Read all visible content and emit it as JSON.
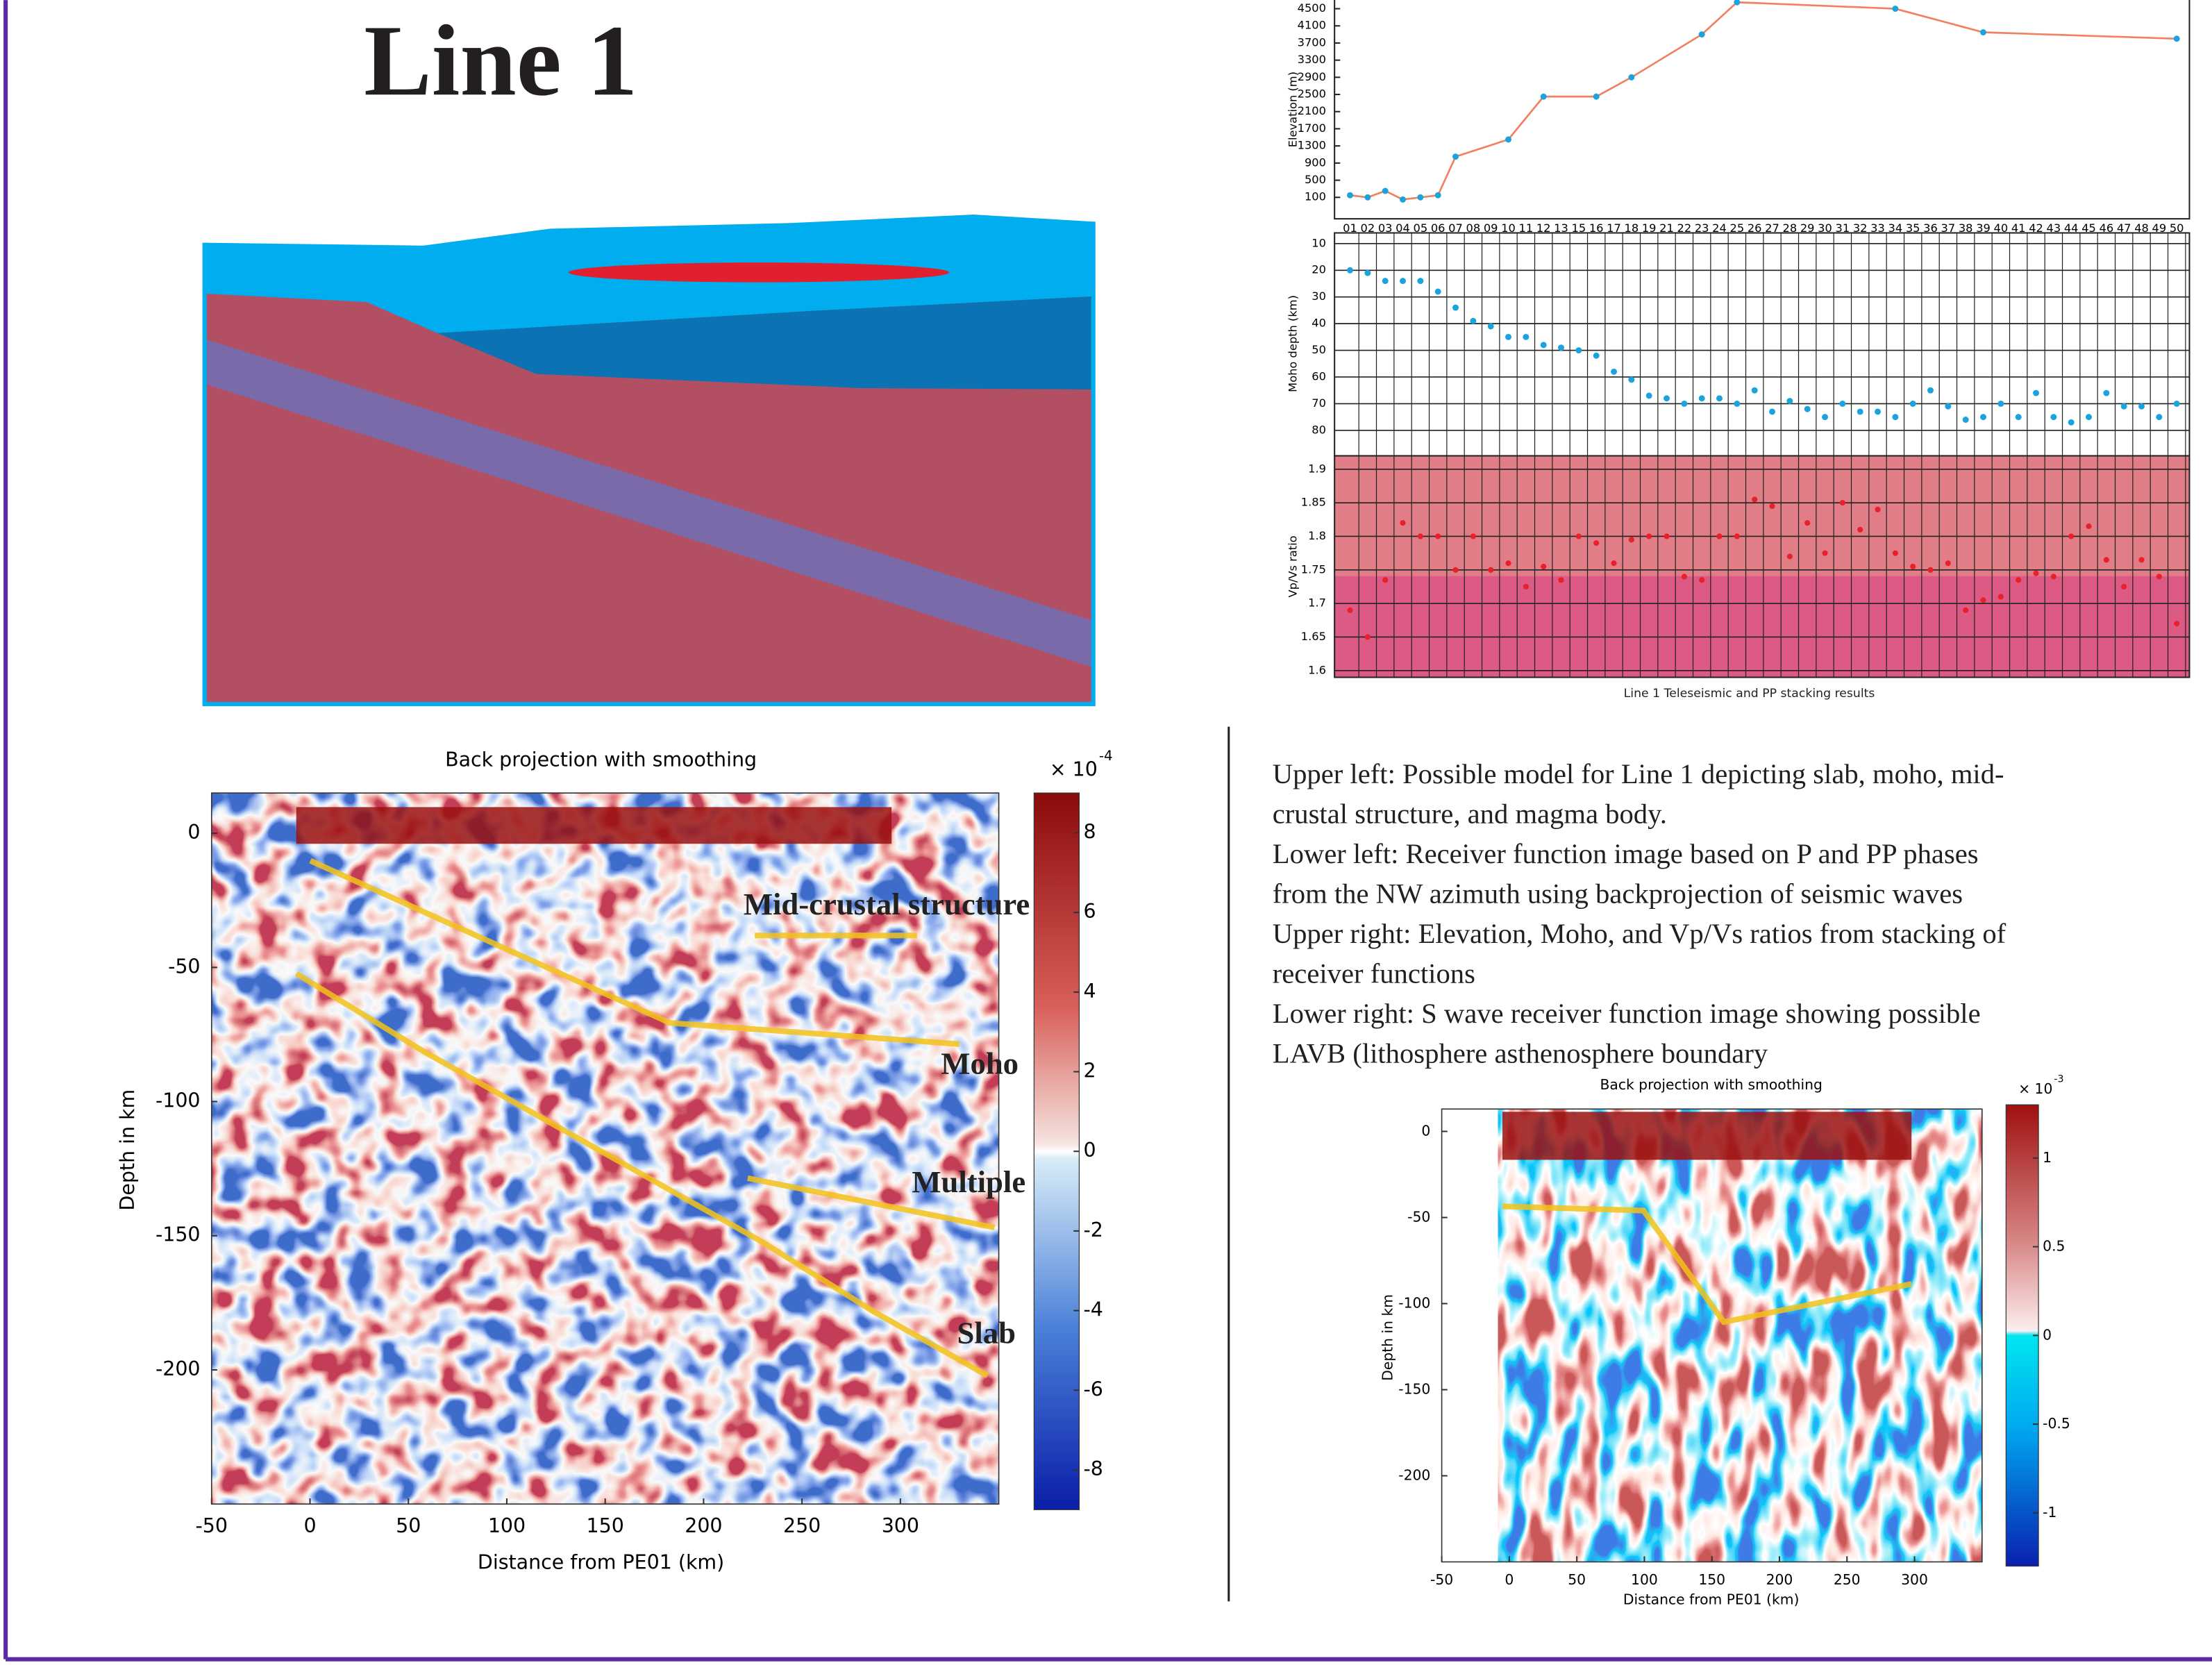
{
  "title": "Line 1",
  "stacking": {
    "caption": "Line 1 Teleseismic and PP stacking results",
    "stations": [
      "01",
      "02",
      "03",
      "04",
      "05",
      "06",
      "07",
      "08",
      "09",
      "10",
      "11",
      "12",
      "13",
      "15",
      "16",
      "17",
      "18",
      "19",
      "21",
      "22",
      "23",
      "24",
      "25",
      "26",
      "27",
      "28",
      "29",
      "30",
      "31",
      "32",
      "33",
      "34",
      "35",
      "36",
      "37",
      "38",
      "39",
      "40",
      "41",
      "42",
      "43",
      "44",
      "45",
      "46",
      "47",
      "48",
      "49",
      "50"
    ],
    "elevation": {
      "ylabel": "Elevation (m)",
      "ylim": [
        -400,
        4700
      ],
      "yticks": [
        100,
        500,
        900,
        1300,
        1700,
        2100,
        2500,
        2900,
        3300,
        3700,
        4100,
        4500
      ],
      "color": "#f08060",
      "stations": [
        "01",
        "02",
        "03",
        "04",
        "05",
        "06",
        "07",
        "10",
        "12",
        "16",
        "18",
        "23",
        "25",
        "34",
        "39",
        "50"
      ],
      "values": [
        150,
        100,
        250,
        50,
        100,
        150,
        1050,
        1450,
        2450,
        2450,
        2900,
        3900,
        4650,
        4500,
        3950,
        3800
      ]
    },
    "moho": {
      "ylabel": "Moho depth (km)",
      "ylim": [
        6,
        89
      ],
      "inverted": true,
      "yticks": [
        10,
        20,
        30,
        40,
        50,
        60,
        70,
        80
      ],
      "color": "#1aa3dc",
      "values": [
        20,
        21,
        24,
        24,
        24,
        28,
        34,
        39,
        41,
        45,
        45,
        48,
        49,
        50,
        52,
        58,
        61,
        67,
        68,
        70,
        68,
        68,
        70,
        65,
        73,
        69,
        72,
        75,
        70,
        73,
        73,
        75,
        70,
        65,
        71,
        76,
        75,
        70,
        75,
        66,
        75,
        77,
        75,
        66,
        71,
        71,
        75,
        70
      ]
    },
    "vpvs": {
      "ylabel": "Vp/Vs ratio",
      "ylim": [
        1.59,
        1.92
      ],
      "yticks": [
        1.6,
        1.65,
        1.7,
        1.75,
        1.8,
        1.85,
        1.9
      ],
      "color": "#e8202a",
      "values": [
        1.69,
        1.65,
        1.735,
        1.82,
        1.8,
        1.8,
        1.75,
        1.8,
        1.75,
        1.76,
        1.725,
        1.755,
        1.735,
        1.8,
        1.79,
        1.76,
        1.795,
        1.8,
        1.8,
        1.74,
        1.735,
        1.8,
        1.8,
        1.855,
        1.845,
        1.77,
        1.82,
        1.775,
        1.85,
        1.81,
        1.84,
        1.775,
        1.755,
        1.75,
        1.76,
        1.69,
        1.705,
        1.71,
        1.735,
        1.745,
        1.74,
        1.8,
        1.815,
        1.765,
        1.725,
        1.765,
        1.74,
        1.67
      ]
    }
  },
  "panels": [
    {
      "title": "Back projection with smoothing",
      "xlabel": "Distance from PE01 (km)",
      "ylabel": "Depth in km",
      "xlim": [
        -50,
        350
      ],
      "ylim": [
        -250,
        15
      ],
      "xticks": [
        -50,
        0,
        50,
        100,
        150,
        200,
        250,
        300
      ],
      "yticks": [
        0,
        -50,
        -100,
        -150,
        -200
      ],
      "clim": [
        -9,
        9
      ],
      "cticks": [
        8,
        6,
        4,
        2,
        0,
        -2,
        -4,
        -6,
        -8
      ],
      "colorbar_label": "× 10",
      "colorbar_exponent": "-4",
      "annotations": [
        "Mid-crustal structure",
        "Moho",
        "Multiple",
        "Slab"
      ]
    },
    {
      "title": "Back projection with smoothing",
      "xlabel": "Distance from PE01 (km)",
      "ylabel": "Depth in km",
      "xlim": [
        -50,
        350
      ],
      "ylim": [
        -250,
        13
      ],
      "xticks": [
        -50,
        0,
        50,
        100,
        150,
        200,
        250,
        300
      ],
      "yticks": [
        0,
        -50,
        -100,
        -150,
        -200
      ],
      "clim": [
        -1.3,
        1.3
      ],
      "cticks": [
        1,
        0.5,
        0,
        -0.5,
        -1
      ],
      "colorbar_label": "× 10",
      "colorbar_exponent": "-3",
      "annotations": []
    }
  ],
  "caption": [
    "Upper left: Possible model for Line 1 depicting slab, moho, mid-",
    "crustal structure, and magma body.",
    "Lower left: Receiver function image based on P and PP phases",
    "from the NW azimuth using backprojection of seismic waves",
    "Upper right: Elevation, Moho, and Vp/Vs ratios from stacking of",
    "receiver functions",
    "Lower right: S wave receiver function image showing possible",
    "LAVB (lithosphere asthenosphere boundary"
  ]
}
